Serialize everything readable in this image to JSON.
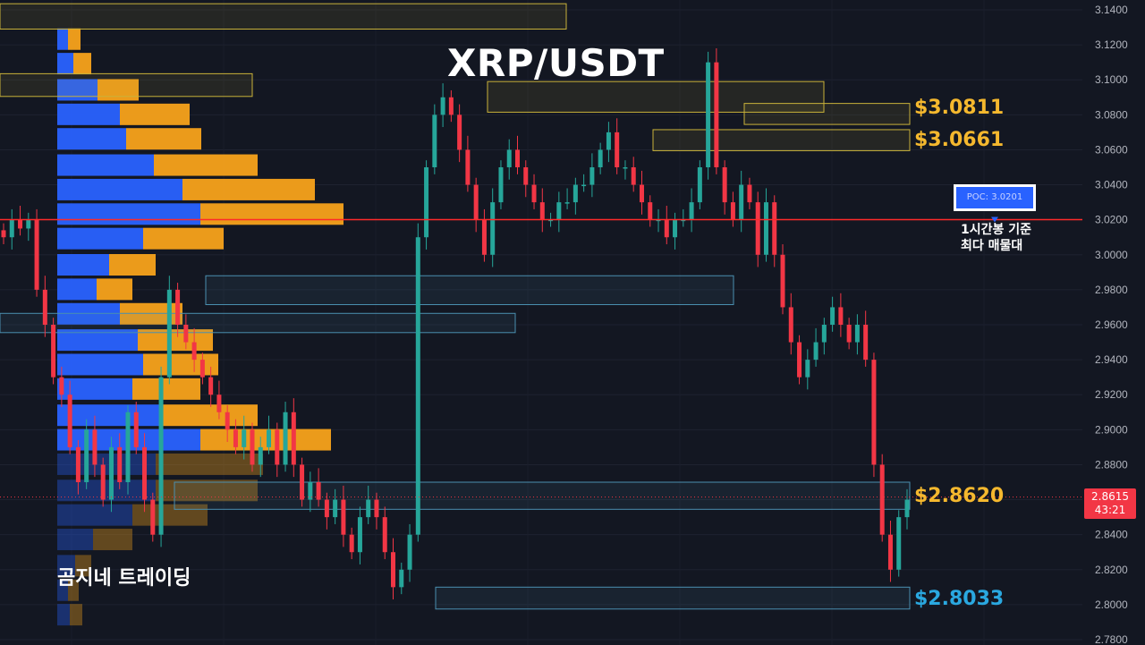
{
  "title": "XRP/USDT",
  "watermark": "곰지네 트레이딩",
  "colors": {
    "background": "#131722",
    "bull": "#26a69a",
    "bear": "#f23645",
    "vp_buy": "#2962ff",
    "vp_sell": "#f7a21b",
    "poc_line": "#ff2a2a",
    "zone_yellow": "#c9b23a",
    "zone_blue": "#4a8fb0",
    "label_gold": "#f5b82e",
    "label_blue": "#2aa8e0"
  },
  "poc": {
    "label": "POC: 3.0201",
    "note": "1시간봉 기준\n최다 매물대"
  },
  "levels": [
    {
      "label": "$3.0811",
      "color": "gold"
    },
    {
      "label": "$3.0661",
      "color": "gold"
    },
    {
      "label": "$2.8620",
      "color": "gold"
    },
    {
      "label": "$2.8033",
      "color": "blue"
    }
  ],
  "current_price": {
    "price": "2.8615",
    "countdown": "43:21"
  },
  "chart_data": {
    "type": "candlestick",
    "ylim": [
      2.77,
      3.145
    ],
    "y_ticks": [
      "3.1400",
      "3.1200",
      "3.1000",
      "3.0800",
      "3.0600",
      "3.0400",
      "3.0200",
      "3.0000",
      "2.9800",
      "2.9600",
      "2.9400",
      "2.9200",
      "2.9000",
      "2.8800",
      "2.8600",
      "2.8400",
      "2.8200",
      "2.8000",
      "2.7800"
    ],
    "poc_price": 3.0201,
    "close_path": [
      3.01,
      3.02,
      3.015,
      3.02,
      2.98,
      2.96,
      2.93,
      2.92,
      2.89,
      2.87,
      2.9,
      2.88,
      2.86,
      2.89,
      2.87,
      2.91,
      2.89,
      2.86,
      2.84,
      2.93,
      2.98,
      2.96,
      2.95,
      2.94,
      2.93,
      2.92,
      2.91,
      2.9,
      2.89,
      2.9,
      2.88,
      2.89,
      2.9,
      2.88,
      2.91,
      2.88,
      2.86,
      2.87,
      2.86,
      2.85,
      2.86,
      2.84,
      2.83,
      2.85,
      2.86,
      2.85,
      2.83,
      2.81,
      2.82,
      2.84,
      3.01,
      3.05,
      3.08,
      3.09,
      3.08,
      3.06,
      3.04,
      3.02,
      3.0,
      3.03,
      3.05,
      3.06,
      3.05,
      3.04,
      3.03,
      3.02,
      3.02,
      3.03,
      3.03,
      3.04,
      3.04,
      3.05,
      3.06,
      3.07,
      3.05,
      3.05,
      3.04,
      3.03,
      3.02,
      3.02,
      3.01,
      3.02,
      3.02,
      3.03,
      3.05,
      3.11,
      3.05,
      3.03,
      3.02,
      3.04,
      3.03,
      3.0,
      3.03,
      3.0,
      2.97,
      2.95,
      2.93,
      2.94,
      2.95,
      2.96,
      2.97,
      2.96,
      2.95,
      2.96,
      2.94,
      2.88,
      2.84,
      2.82,
      2.85,
      2.86
    ],
    "volume_profile": [
      {
        "price": 3.137,
        "buy": 0,
        "sell": 0
      },
      {
        "price": 3.123,
        "buy": 12,
        "sell": 14
      },
      {
        "price": 3.109,
        "buy": 18,
        "sell": 20
      },
      {
        "price": 3.094,
        "buy": 45,
        "sell": 46
      },
      {
        "price": 3.08,
        "buy": 70,
        "sell": 78
      },
      {
        "price": 3.066,
        "buy": 77,
        "sell": 84
      },
      {
        "price": 3.051,
        "buy": 108,
        "sell": 116
      },
      {
        "price": 3.037,
        "buy": 140,
        "sell": 148
      },
      {
        "price": 3.023,
        "buy": 160,
        "sell": 160
      },
      {
        "price": 3.009,
        "buy": 96,
        "sell": 90
      },
      {
        "price": 2.994,
        "buy": 58,
        "sell": 52
      },
      {
        "price": 2.98,
        "buy": 44,
        "sell": 40
      },
      {
        "price": 2.966,
        "buy": 70,
        "sell": 70
      },
      {
        "price": 2.951,
        "buy": 90,
        "sell": 84
      },
      {
        "price": 2.937,
        "buy": 96,
        "sell": 84
      },
      {
        "price": 2.923,
        "buy": 84,
        "sell": 76
      },
      {
        "price": 2.908,
        "buy": 116,
        "sell": 108
      },
      {
        "price": 2.894,
        "buy": 160,
        "sell": 146
      },
      {
        "price": 2.88,
        "buy": 110,
        "sell": 120
      },
      {
        "price": 2.865,
        "buy": 110,
        "sell": 114
      },
      {
        "price": 2.851,
        "buy": 84,
        "sell": 84
      },
      {
        "price": 2.837,
        "buy": 40,
        "sell": 44
      },
      {
        "price": 2.822,
        "buy": 20,
        "sell": 18
      },
      {
        "price": 2.808,
        "buy": 12,
        "sell": 12
      },
      {
        "price": 2.794,
        "buy": 14,
        "sell": 14
      }
    ]
  }
}
